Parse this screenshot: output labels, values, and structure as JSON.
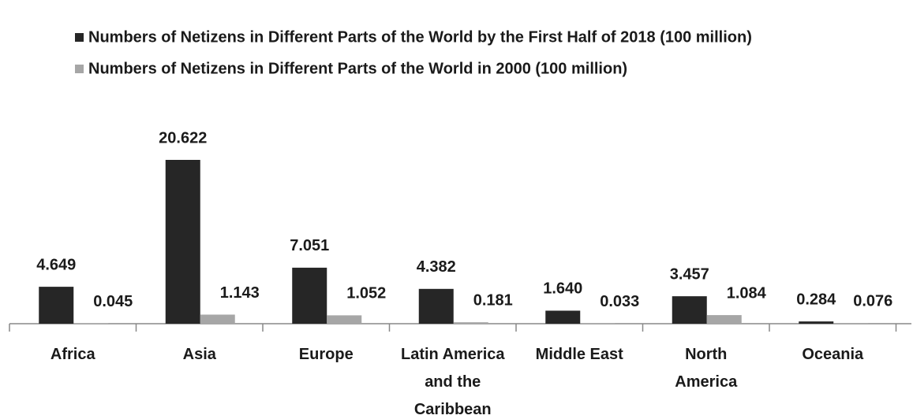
{
  "chart_data": {
    "type": "bar",
    "categories": [
      "Africa",
      "Asia",
      "Europe",
      "Latin America\nand the\nCaribbean",
      "Middle East",
      "North\nAmerica",
      "Oceania"
    ],
    "series": [
      {
        "name": "Numbers of Netizens in Different Parts of the World by the First Half of 2018 (100 million)",
        "color": "#262626",
        "values": [
          4.649,
          20.622,
          7.051,
          4.382,
          1.64,
          3.457,
          0.284
        ],
        "value_labels": [
          "4.649",
          "20.622",
          "7.051",
          "4.382",
          "1.640",
          "3.457",
          "0.284"
        ]
      },
      {
        "name": "Numbers of Netizens in Different Parts of the World in 2000 (100 million)",
        "color": "#a6a6a6",
        "values": [
          0.045,
          1.143,
          1.052,
          0.181,
          0.033,
          1.084,
          0.076
        ],
        "value_labels": [
          "0.045",
          "1.143",
          "1.052",
          "0.181",
          "0.033",
          "1.084",
          "0.076"
        ]
      }
    ],
    "legend": "top-left"
  }
}
